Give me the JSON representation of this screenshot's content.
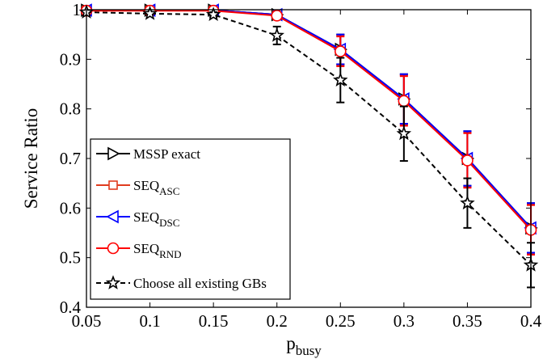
{
  "chart_data": {
    "type": "line",
    "xlabel": {
      "main": "p",
      "sub": "busy"
    },
    "ylabel": "Service Ratio",
    "xlim": [
      0.05,
      0.4
    ],
    "ylim": [
      0.4,
      1.0
    ],
    "x_ticks": [
      "0.05",
      "0.1",
      "0.15",
      "0.2",
      "0.25",
      "0.3",
      "0.35",
      "0.4"
    ],
    "y_ticks": [
      "0.4",
      "0.5",
      "0.6",
      "0.7",
      "0.8",
      "0.9",
      "1"
    ],
    "grid": false,
    "legend_position": "bottom-left",
    "x": [
      0.05,
      0.1,
      0.15,
      0.2,
      0.25,
      0.3,
      0.35,
      0.4
    ],
    "series": [
      {
        "name": "MSSP exact",
        "label_main": "MSSP exact",
        "label_sub": "",
        "color": "#000000",
        "dash": "solid",
        "marker": "triangle-right",
        "values": [
          0.999,
          0.999,
          0.999,
          0.99,
          0.92,
          0.82,
          0.7,
          0.56
        ],
        "err": [
          0.002,
          0.002,
          0.002,
          0.008,
          0.03,
          0.05,
          0.055,
          0.05
        ]
      },
      {
        "name": "SEQASC",
        "label_main": "SEQ",
        "label_sub": "ASC",
        "color": "#e03c1e",
        "dash": "solid",
        "marker": "square",
        "values": [
          0.999,
          0.999,
          0.999,
          0.99,
          0.918,
          0.818,
          0.698,
          0.558
        ],
        "err": [
          0.002,
          0.002,
          0.002,
          0.008,
          0.03,
          0.05,
          0.055,
          0.05
        ]
      },
      {
        "name": "SEQDSC",
        "label_main": "SEQ",
        "label_sub": "DSC",
        "color": "#0000ff",
        "dash": "solid",
        "marker": "triangle-left",
        "values": [
          0.999,
          0.999,
          0.999,
          0.99,
          0.92,
          0.82,
          0.7,
          0.56
        ],
        "err": [
          0.002,
          0.002,
          0.002,
          0.008,
          0.03,
          0.05,
          0.055,
          0.05
        ]
      },
      {
        "name": "SEQRND",
        "label_main": "SEQ",
        "label_sub": "RND",
        "color": "#ff0000",
        "dash": "solid",
        "marker": "circle",
        "values": [
          0.998,
          0.998,
          0.998,
          0.988,
          0.916,
          0.816,
          0.696,
          0.556
        ],
        "err": [
          0.002,
          0.002,
          0.002,
          0.008,
          0.03,
          0.05,
          0.055,
          0.05
        ]
      },
      {
        "name": "Choose all existing GBs",
        "label_main": "Choose all existing GBs",
        "label_sub": "",
        "color": "#000000",
        "dash": "dashed",
        "marker": "star",
        "values": [
          0.995,
          0.992,
          0.99,
          0.948,
          0.858,
          0.75,
          0.61,
          0.485
        ],
        "err": [
          0.003,
          0.004,
          0.005,
          0.018,
          0.045,
          0.055,
          0.05,
          0.045
        ]
      }
    ]
  }
}
